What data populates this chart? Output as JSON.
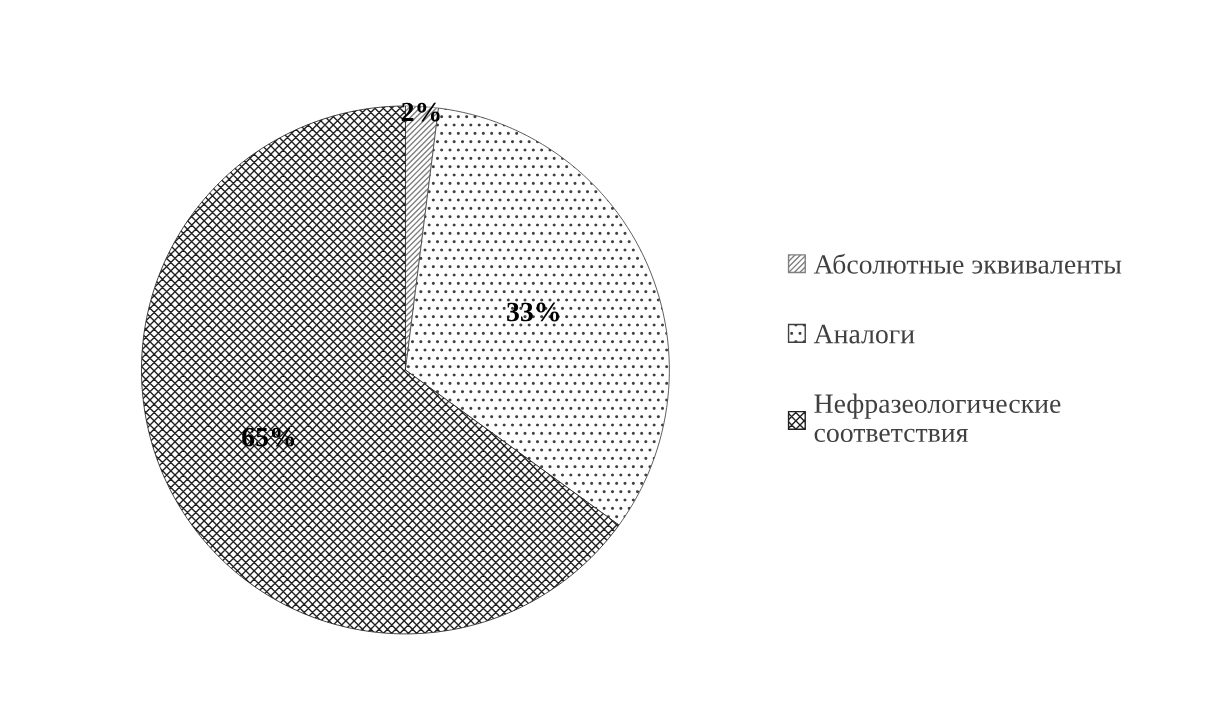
{
  "chart_data": {
    "type": "pie",
    "categories": [
      "Абсолютные эквиваленты",
      "Аналоги",
      "Нефразеологические\nсоответствия"
    ],
    "values": [
      2,
      33,
      65
    ],
    "colors": [
      "#7f7f7f",
      "#404040",
      "#202020"
    ],
    "value_labels": [
      "2%",
      "33%",
      "65%"
    ],
    "legend": "right"
  }
}
